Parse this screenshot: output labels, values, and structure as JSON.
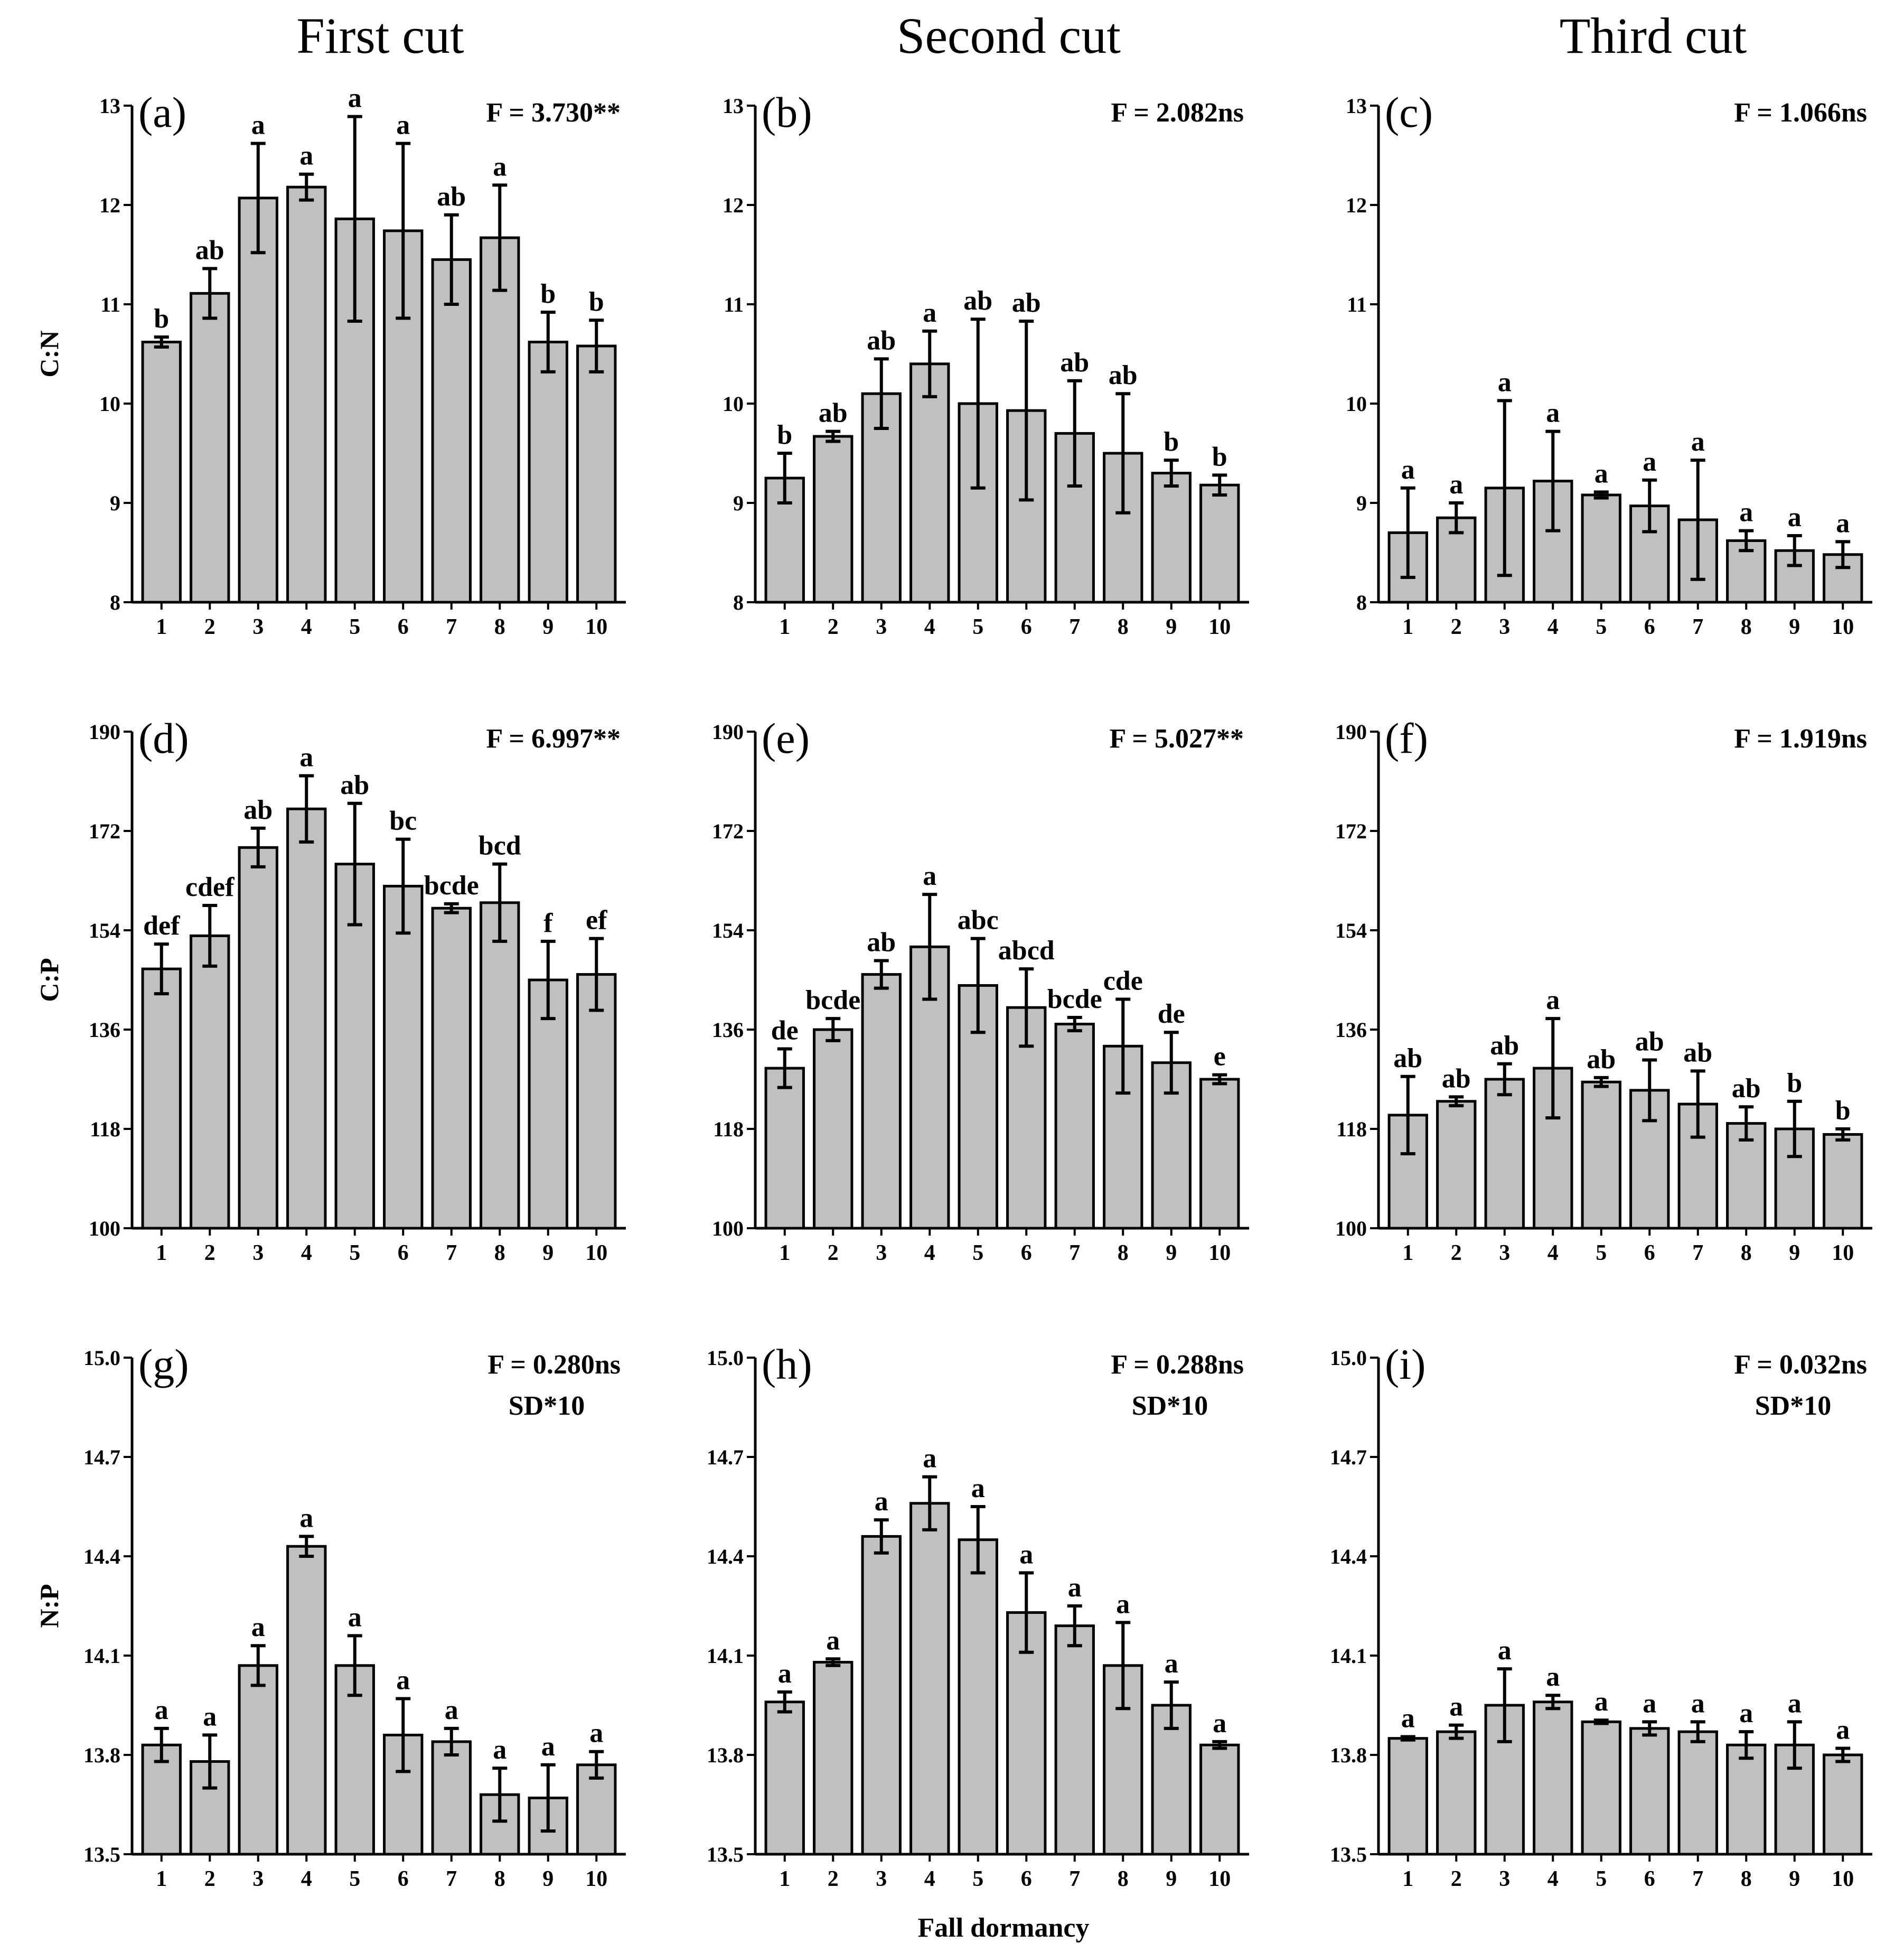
{
  "figure": {
    "column_titles": [
      "First cut",
      "Second cut",
      "Third cut"
    ],
    "xlabel": "Fall dormancy",
    "colors": {
      "bar_fill": "#c0c0c0",
      "bar_stroke": "#000000",
      "axis": "#000000",
      "background": "#ffffff"
    }
  },
  "chart_data": [
    {
      "panel": "(a)",
      "type": "bar",
      "stat": "F = 3.730**",
      "note": "",
      "ylabel": "C:N",
      "ylim": [
        8,
        13
      ],
      "yticks": [
        "8",
        "9",
        "10",
        "11",
        "12",
        "13"
      ],
      "categories": [
        "1",
        "2",
        "3",
        "4",
        "5",
        "6",
        "7",
        "8",
        "9",
        "10"
      ],
      "values": [
        10.62,
        11.11,
        12.07,
        12.18,
        11.86,
        11.74,
        11.45,
        11.67,
        10.62,
        10.58
      ],
      "errors": [
        0.05,
        0.25,
        0.55,
        0.13,
        1.03,
        0.88,
        0.45,
        0.53,
        0.3,
        0.26
      ],
      "letters": [
        "b",
        "ab",
        "a",
        "a",
        "a",
        "a",
        "ab",
        "a",
        "b",
        "b"
      ]
    },
    {
      "panel": "(b)",
      "type": "bar",
      "stat": "F = 2.082ns",
      "note": "",
      "ylabel": "",
      "ylim": [
        8,
        13
      ],
      "yticks": [
        "8",
        "9",
        "10",
        "11",
        "12",
        "13"
      ],
      "categories": [
        "1",
        "2",
        "3",
        "4",
        "5",
        "6",
        "7",
        "8",
        "9",
        "10"
      ],
      "values": [
        9.25,
        9.67,
        10.1,
        10.4,
        10.0,
        9.93,
        9.7,
        9.5,
        9.3,
        9.18
      ],
      "errors": [
        0.25,
        0.05,
        0.35,
        0.33,
        0.85,
        0.9,
        0.53,
        0.6,
        0.13,
        0.1
      ],
      "letters": [
        "b",
        "ab",
        "ab",
        "a",
        "ab",
        "ab",
        "ab",
        "ab",
        "b",
        "b"
      ]
    },
    {
      "panel": "(c)",
      "type": "bar",
      "stat": "F = 1.066ns",
      "note": "",
      "ylabel": "",
      "ylim": [
        8,
        13
      ],
      "yticks": [
        "8",
        "9",
        "10",
        "11",
        "12",
        "13"
      ],
      "categories": [
        "1",
        "2",
        "3",
        "4",
        "5",
        "6",
        "7",
        "8",
        "9",
        "10"
      ],
      "values": [
        8.7,
        8.85,
        9.15,
        9.22,
        9.08,
        8.97,
        8.83,
        8.62,
        8.52,
        8.48
      ],
      "errors": [
        0.45,
        0.15,
        0.88,
        0.5,
        0.03,
        0.26,
        0.6,
        0.1,
        0.15,
        0.13
      ],
      "letters": [
        "a",
        "a",
        "a",
        "a",
        "a",
        "a",
        "a",
        "a",
        "a",
        "a"
      ]
    },
    {
      "panel": "(d)",
      "type": "bar",
      "stat": "F = 6.997**",
      "note": "",
      "ylabel": "C:P",
      "ylim": [
        100,
        190
      ],
      "yticks": [
        "100",
        "118",
        "136",
        "154",
        "172",
        "190"
      ],
      "categories": [
        "1",
        "2",
        "3",
        "4",
        "5",
        "6",
        "7",
        "8",
        "9",
        "10"
      ],
      "values": [
        147,
        153,
        169,
        176,
        166,
        162,
        158,
        159,
        145,
        146
      ],
      "errors": [
        4.5,
        5.5,
        3.5,
        6.0,
        11.0,
        8.5,
        0.8,
        7.0,
        7.0,
        6.5
      ],
      "letters": [
        "def",
        "cdef",
        "ab",
        "a",
        "ab",
        "bc",
        "bcde",
        "bcd",
        "f",
        "ef"
      ]
    },
    {
      "panel": "(e)",
      "type": "bar",
      "stat": "F = 5.027**",
      "note": "",
      "ylabel": "",
      "ylim": [
        100,
        190
      ],
      "yticks": [
        "100",
        "118",
        "136",
        "154",
        "172",
        "190"
      ],
      "categories": [
        "1",
        "2",
        "3",
        "4",
        "5",
        "6",
        "7",
        "8",
        "9",
        "10"
      ],
      "values": [
        129,
        136,
        146,
        151,
        144,
        140,
        137,
        133,
        130,
        127
      ],
      "errors": [
        3.5,
        2.0,
        2.5,
        9.5,
        8.5,
        7.0,
        1.2,
        8.5,
        5.5,
        0.8
      ],
      "letters": [
        "de",
        "bcde",
        "ab",
        "a",
        "abc",
        "abcd",
        "bcde",
        "cde",
        "de",
        "e"
      ]
    },
    {
      "panel": "(f)",
      "type": "bar",
      "stat": "F = 1.919ns",
      "note": "",
      "ylabel": "",
      "ylim": [
        100,
        190
      ],
      "yticks": [
        "100",
        "118",
        "136",
        "154",
        "172",
        "190"
      ],
      "categories": [
        "1",
        "2",
        "3",
        "4",
        "5",
        "6",
        "7",
        "8",
        "9",
        "10"
      ],
      "values": [
        120.5,
        123,
        127,
        129,
        126.5,
        125,
        122.5,
        119,
        118,
        117
      ],
      "errors": [
        7.0,
        0.8,
        2.8,
        9.0,
        0.8,
        5.5,
        6.0,
        3.0,
        5.0,
        1.0
      ],
      "letters": [
        "ab",
        "ab",
        "ab",
        "a",
        "ab",
        "ab",
        "ab",
        "ab",
        "b",
        "b"
      ]
    },
    {
      "panel": "(g)",
      "type": "bar",
      "stat": "F = 0.280ns",
      "note": "SD*10",
      "ylabel": "N:P",
      "ylim": [
        13.5,
        15.0
      ],
      "yticks": [
        "13.5",
        "13.8",
        "14.1",
        "14.4",
        "14.7",
        "15.0"
      ],
      "categories": [
        "1",
        "2",
        "3",
        "4",
        "5",
        "6",
        "7",
        "8",
        "9",
        "10"
      ],
      "values": [
        13.83,
        13.78,
        14.07,
        14.43,
        14.07,
        13.86,
        13.84,
        13.68,
        13.67,
        13.77
      ],
      "errors": [
        0.05,
        0.08,
        0.06,
        0.03,
        0.09,
        0.11,
        0.04,
        0.08,
        0.1,
        0.04
      ],
      "letters": [
        "a",
        "a",
        "a",
        "a",
        "a",
        "a",
        "a",
        "a",
        "a",
        "a"
      ]
    },
    {
      "panel": "(h)",
      "type": "bar",
      "stat": "F = 0.288ns",
      "note": "SD*10",
      "ylabel": "",
      "ylim": [
        13.5,
        15.0
      ],
      "yticks": [
        "13.5",
        "13.8",
        "14.1",
        "14.4",
        "14.7",
        "15.0"
      ],
      "categories": [
        "1",
        "2",
        "3",
        "4",
        "5",
        "6",
        "7",
        "8",
        "9",
        "10"
      ],
      "values": [
        13.96,
        14.08,
        14.46,
        14.56,
        14.45,
        14.23,
        14.19,
        14.07,
        13.95,
        13.83
      ],
      "errors": [
        0.03,
        0.01,
        0.05,
        0.08,
        0.1,
        0.12,
        0.06,
        0.13,
        0.07,
        0.01
      ],
      "letters": [
        "a",
        "a",
        "a",
        "a",
        "a",
        "a",
        "a",
        "a",
        "a",
        "a"
      ]
    },
    {
      "panel": "(i)",
      "type": "bar",
      "stat": "F = 0.032ns",
      "note": "SD*10",
      "ylabel": "",
      "ylim": [
        13.5,
        15.0
      ],
      "yticks": [
        "13.5",
        "13.8",
        "14.1",
        "14.4",
        "14.7",
        "15.0"
      ],
      "categories": [
        "1",
        "2",
        "3",
        "4",
        "5",
        "6",
        "7",
        "8",
        "9",
        "10"
      ],
      "values": [
        13.85,
        13.87,
        13.95,
        13.96,
        13.9,
        13.88,
        13.87,
        13.83,
        13.83,
        13.8
      ],
      "errors": [
        0.005,
        0.02,
        0.11,
        0.02,
        0.005,
        0.02,
        0.03,
        0.04,
        0.07,
        0.02
      ],
      "letters": [
        "a",
        "a",
        "a",
        "a",
        "a",
        "a",
        "a",
        "a",
        "a",
        "a"
      ]
    }
  ]
}
